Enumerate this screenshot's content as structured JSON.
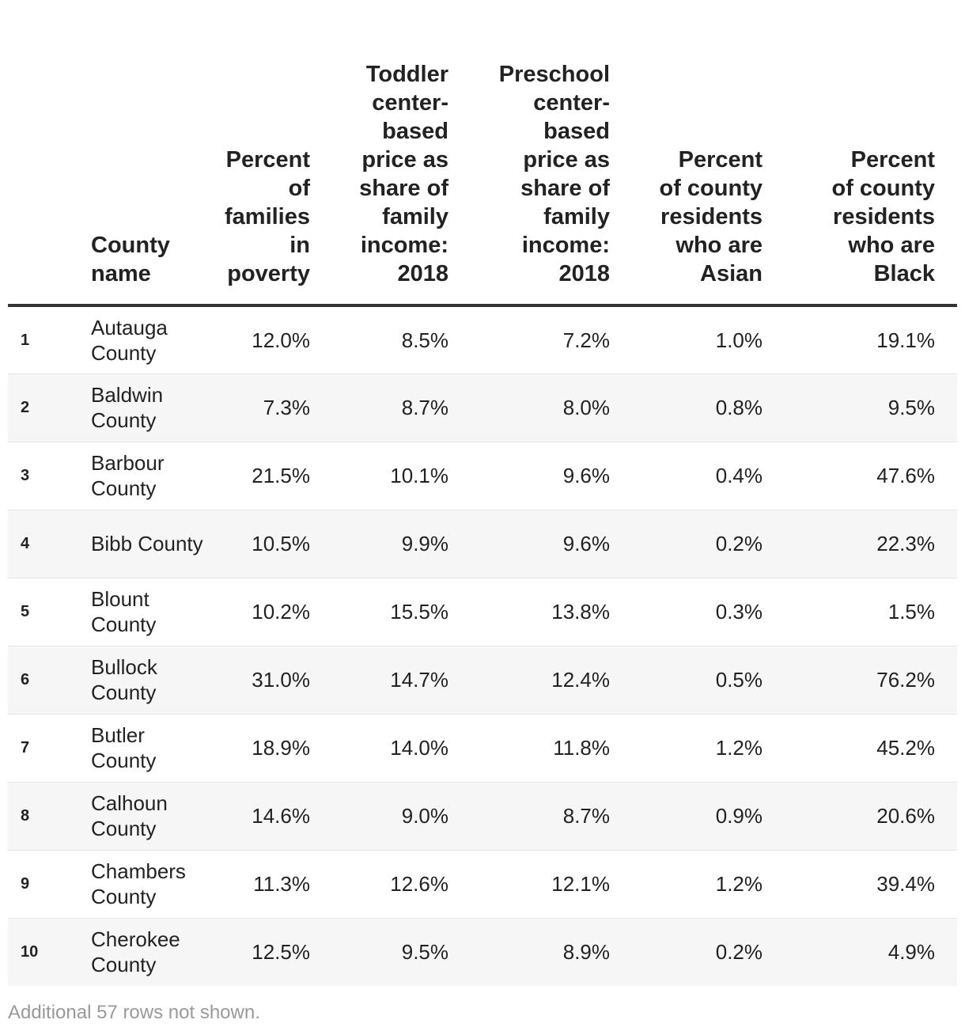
{
  "table": {
    "headers": {
      "index": "",
      "county_name": "County name",
      "poverty": "Percent of families in poverty",
      "toddler_price": "Toddler center-based price as share of family income: 2018",
      "preschool_price": "Preschool center-based price as share of family income: 2018",
      "pct_asian": "Percent of county residents who are Asian",
      "pct_black": "Percent of county residents who are Black"
    },
    "rows": [
      {
        "idx": "1",
        "name": "Autauga County",
        "poverty": "12.0%",
        "toddler": "8.5%",
        "preschool": "7.2%",
        "asian": "1.0%",
        "black": "19.1%"
      },
      {
        "idx": "2",
        "name": "Baldwin County",
        "poverty": "7.3%",
        "toddler": "8.7%",
        "preschool": "8.0%",
        "asian": "0.8%",
        "black": "9.5%"
      },
      {
        "idx": "3",
        "name": "Barbour County",
        "poverty": "21.5%",
        "toddler": "10.1%",
        "preschool": "9.6%",
        "asian": "0.4%",
        "black": "47.6%"
      },
      {
        "idx": "4",
        "name": "Bibb County",
        "poverty": "10.5%",
        "toddler": "9.9%",
        "preschool": "9.6%",
        "asian": "0.2%",
        "black": "22.3%"
      },
      {
        "idx": "5",
        "name": "Blount County",
        "poverty": "10.2%",
        "toddler": "15.5%",
        "preschool": "13.8%",
        "asian": "0.3%",
        "black": "1.5%"
      },
      {
        "idx": "6",
        "name": "Bullock County",
        "poverty": "31.0%",
        "toddler": "14.7%",
        "preschool": "12.4%",
        "asian": "0.5%",
        "black": "76.2%"
      },
      {
        "idx": "7",
        "name": "Butler County",
        "poverty": "18.9%",
        "toddler": "14.0%",
        "preschool": "11.8%",
        "asian": "1.2%",
        "black": "45.2%"
      },
      {
        "idx": "8",
        "name": "Calhoun County",
        "poverty": "14.6%",
        "toddler": "9.0%",
        "preschool": "8.7%",
        "asian": "0.9%",
        "black": "20.6%"
      },
      {
        "idx": "9",
        "name": "Chambers County",
        "poverty": "11.3%",
        "toddler": "12.6%",
        "preschool": "12.1%",
        "asian": "1.2%",
        "black": "39.4%"
      },
      {
        "idx": "10",
        "name": "Cherokee County",
        "poverty": "12.5%",
        "toddler": "9.5%",
        "preschool": "8.9%",
        "asian": "0.2%",
        "black": "4.9%"
      }
    ]
  },
  "footer": {
    "note": "Additional 57 rows not shown."
  }
}
